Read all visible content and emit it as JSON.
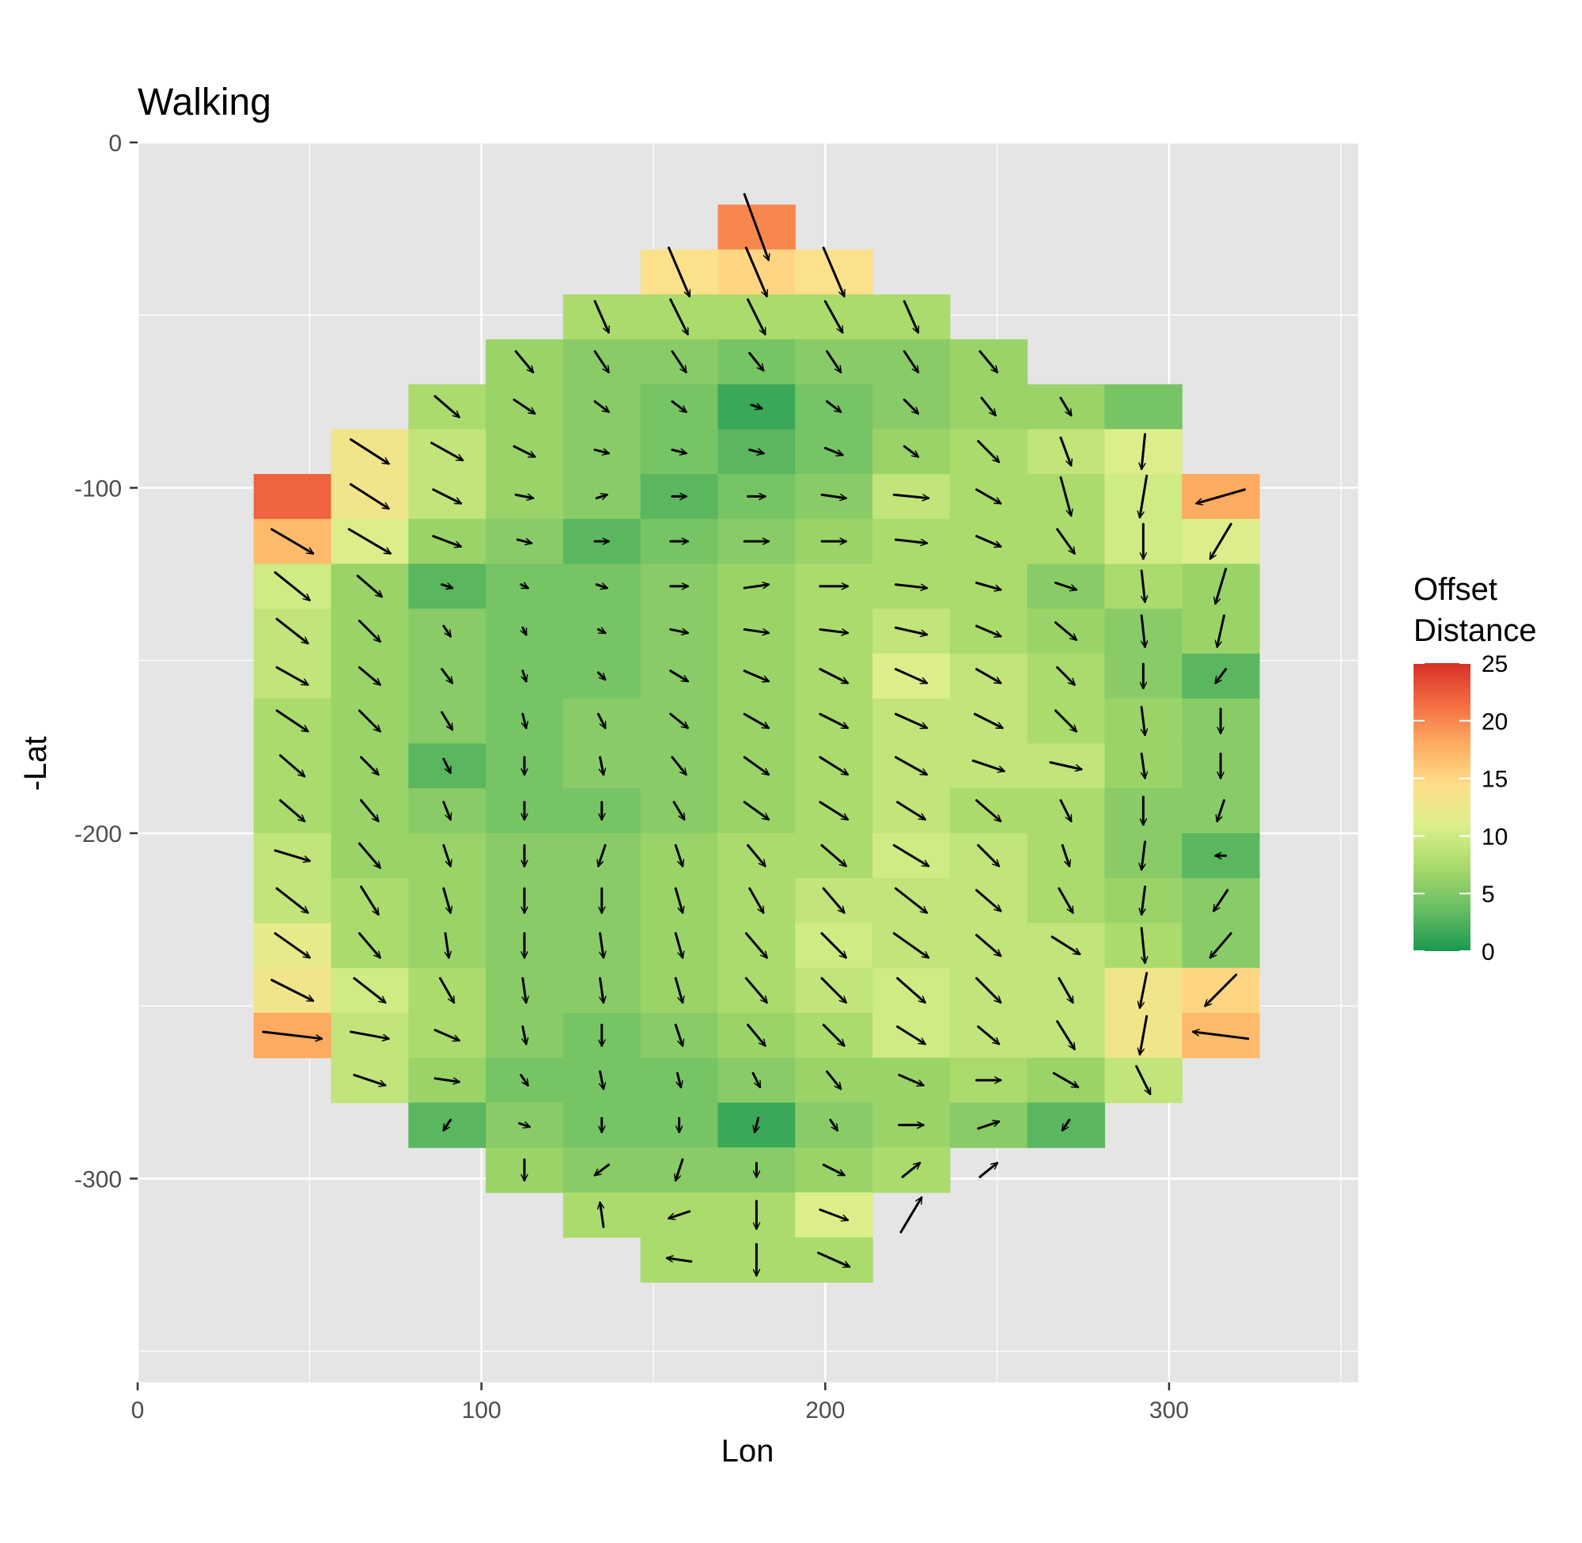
{
  "chart_data": {
    "type": "heatmap",
    "title": "Walking",
    "xlabel": "Lon",
    "ylabel": "-Lat",
    "xlim": [
      0,
      355
    ],
    "ylim": [
      -359,
      0
    ],
    "x_ticks": [
      {
        "value": 0,
        "label": "0"
      },
      {
        "value": 100,
        "label": "100"
      },
      {
        "value": 200,
        "label": "200"
      },
      {
        "value": 300,
        "label": "300"
      }
    ],
    "y_ticks": [
      {
        "value": 0,
        "label": "0"
      },
      {
        "value": -100,
        "label": "-100"
      },
      {
        "value": -200,
        "label": "-200"
      },
      {
        "value": -300,
        "label": "-300"
      }
    ],
    "grid": true,
    "legend": {
      "title": "Offset\nDistance",
      "position": "right",
      "range": [
        0,
        25
      ],
      "breaks": [
        {
          "value": 25,
          "label": "25"
        },
        {
          "value": 20,
          "label": "20"
        },
        {
          "value": 15,
          "label": "15"
        },
        {
          "value": 10,
          "label": "10"
        },
        {
          "value": 5,
          "label": "5"
        },
        {
          "value": 0,
          "label": "0"
        }
      ],
      "colors": [
        "#1a9850",
        "#66bd63",
        "#a6d96a",
        "#d9ef8b",
        "#fee08b",
        "#fdae61",
        "#f46d43",
        "#d73027"
      ]
    },
    "cell": {
      "width": 22.5,
      "height": 13
    },
    "columns": [
      45,
      67.5,
      90,
      112.5,
      135,
      157.5,
      180,
      202.5,
      225,
      247.5,
      270,
      292.5,
      315
    ],
    "rows": [
      -24.5,
      -37.5,
      -50.5,
      -63.5,
      -76.5,
      -89.5,
      -102.5,
      -115.5,
      -128.5,
      -141.5,
      -154.5,
      -167.5,
      -180.5,
      -193.5,
      -206.5,
      -219.5,
      -232.5,
      -245.5,
      -258.5,
      -271.5,
      -284.5,
      -297.5,
      -310.5,
      -323.5
    ],
    "grid_rows": [
      "......Q......",
      ".....MNM.....",
      "....GGGGG....",
      "...FEEDEEF...",
      "..GFEDBDEFFD.",
      ".LHFEDCDFGHJ.",
      "SLHFECDEHGGIP",
      "OJFECDEFGGGIJ",
      "IFCDDEFGGGEGF",
      "HFEDDEFGHGFEF",
      "HFEDDEFGJHGEC",
      "GFEDEEFGHHGFE",
      "GFCDEEFGHHHFE",
      "GFEDDEFGHGGEE",
      "HFFEEFGGIHGEC",
      "HGFEEFGHHHGFE",
      "KGFEEFGIHHHGE",
      "LIGEEFGHIHHLN",
      "PHGEDEFGIHHLO",
      ".HFDDDEFFGFH.",
      "..CEDDBEFEC..",
      "...FEEEFG....",
      "....GGGJ.....",
      ".....GGG....."
    ],
    "value_scale": {
      "A": 0,
      "B": 1.5,
      "C": 3,
      "D": 4.5,
      "E": 5.5,
      "F": 6.5,
      "G": 7.5,
      "H": 9,
      "I": 10,
      "J": 11,
      "K": 12,
      "L": 13,
      "M": 14,
      "N": 15,
      "O": 17,
      "P": 18,
      "Q": 20,
      "R": 21,
      "S": 22
    },
    "offsets": [
      [
        "",
        "",
        "",
        "",
        "",
        "",
        [
          7,
          -19
        ],
        "",
        "",
        "",
        "",
        "",
        ""
      ],
      [
        "",
        "",
        "",
        "",
        "",
        [
          6,
          -14
        ],
        [
          6,
          -14
        ],
        [
          6,
          -14
        ],
        "",
        "",
        "",
        "",
        ""
      ],
      [
        "",
        "",
        "",
        "",
        [
          4,
          -9
        ],
        [
          5,
          -10
        ],
        [
          5,
          -10
        ],
        [
          5,
          -9
        ],
        [
          4,
          -9
        ],
        "",
        "",
        "",
        ""
      ],
      [
        "",
        "",
        "",
        [
          5,
          -6
        ],
        [
          4,
          -6
        ],
        [
          4,
          -6
        ],
        [
          4,
          -5
        ],
        [
          4,
          -6
        ],
        [
          4,
          -6
        ],
        [
          5,
          -6
        ],
        "",
        "",
        ""
      ],
      [
        "",
        "",
        [
          7,
          -6
        ],
        [
          6,
          -4
        ],
        [
          4,
          -3
        ],
        [
          4,
          -3
        ],
        [
          3,
          -1
        ],
        [
          4,
          -3
        ],
        [
          4,
          -4
        ],
        [
          4,
          -5
        ],
        [
          3,
          -5
        ],
        "",
        ""
      ],
      [
        "",
        [
          11,
          -7
        ],
        [
          9,
          -5
        ],
        [
          6,
          -3
        ],
        [
          4,
          -1
        ],
        [
          4,
          -1
        ],
        [
          4,
          -1
        ],
        [
          5,
          -2
        ],
        [
          4,
          -3
        ],
        [
          6,
          -6
        ],
        [
          3,
          -8
        ],
        [
          -1,
          -10
        ],
        ""
      ],
      [
        "",
        [
          11,
          -7
        ],
        [
          8,
          -4
        ],
        [
          5,
          -1
        ],
        [
          3,
          1
        ],
        [
          4,
          0
        ],
        [
          5,
          0
        ],
        [
          7,
          -1
        ],
        [
          10,
          -1
        ],
        [
          7,
          -4
        ],
        [
          3,
          -11
        ],
        [
          -2,
          -12
        ],
        [
          -14,
          -4
        ]
      ],
      [
        [
          12,
          -7
        ],
        [
          12,
          -7
        ],
        [
          8,
          -3
        ],
        [
          4,
          -1
        ],
        [
          4,
          0
        ],
        [
          5,
          0
        ],
        [
          7,
          0
        ],
        [
          7,
          0
        ],
        [
          9,
          -1
        ],
        [
          7,
          -3
        ],
        [
          5,
          -7
        ],
        [
          0,
          -10
        ],
        [
          -6,
          -10
        ]
      ],
      [
        [
          10,
          -8
        ],
        [
          7,
          -6
        ],
        [
          3,
          -1
        ],
        [
          2,
          -1
        ],
        [
          3,
          -1
        ],
        [
          5,
          0
        ],
        [
          7,
          1
        ],
        [
          8,
          0
        ],
        [
          9,
          -1
        ],
        [
          7,
          -2
        ],
        [
          6,
          -2
        ],
        [
          1,
          -9
        ],
        [
          -3,
          -10
        ]
      ],
      [
        [
          9,
          -7
        ],
        [
          6,
          -6
        ],
        [
          2,
          -3
        ],
        [
          1,
          -2
        ],
        [
          2,
          -1
        ],
        [
          5,
          -1
        ],
        [
          7,
          -1
        ],
        [
          8,
          -1
        ],
        [
          9,
          -2
        ],
        [
          7,
          -3
        ],
        [
          6,
          -5
        ],
        [
          1,
          -9
        ],
        [
          -2,
          -9
        ]
      ],
      [
        [
          9,
          -5
        ],
        [
          6,
          -5
        ],
        [
          3,
          -4
        ],
        [
          1,
          -3
        ],
        [
          2,
          -2
        ],
        [
          5,
          -3
        ],
        [
          7,
          -3
        ],
        [
          8,
          -4
        ],
        [
          9,
          -4
        ],
        [
          7,
          -4
        ],
        [
          5,
          -5
        ],
        [
          0,
          -7
        ],
        [
          -3,
          -4
        ]
      ],
      [
        [
          9,
          -6
        ],
        [
          6,
          -6
        ],
        [
          3,
          -5
        ],
        [
          1,
          -4
        ],
        [
          2,
          -4
        ],
        [
          5,
          -4
        ],
        [
          7,
          -4
        ],
        [
          8,
          -4
        ],
        [
          9,
          -4
        ],
        [
          8,
          -4
        ],
        [
          6,
          -6
        ],
        [
          1,
          -8
        ],
        [
          0,
          -7
        ]
      ],
      [
        [
          7,
          -6
        ],
        [
          5,
          -5
        ],
        [
          2,
          -4
        ],
        [
          0,
          -5
        ],
        [
          1,
          -5
        ],
        [
          4,
          -5
        ],
        [
          7,
          -5
        ],
        [
          8,
          -5
        ],
        [
          9,
          -5
        ],
        [
          9,
          -3
        ],
        [
          9,
          -2
        ],
        [
          1,
          -7
        ],
        [
          0,
          -7
        ]
      ],
      [
        [
          7,
          -6
        ],
        [
          5,
          -6
        ],
        [
          2,
          -5
        ],
        [
          0,
          -5
        ],
        [
          0,
          -5
        ],
        [
          3,
          -5
        ],
        [
          7,
          -5
        ],
        [
          8,
          -5
        ],
        [
          8,
          -5
        ],
        [
          7,
          -6
        ],
        [
          3,
          -6
        ],
        [
          0,
          -8
        ],
        [
          -2,
          -6
        ]
      ],
      [
        [
          10,
          -3
        ],
        [
          6,
          -7
        ],
        [
          2,
          -6
        ],
        [
          0,
          -6
        ],
        [
          -2,
          -6
        ],
        [
          2,
          -6
        ],
        [
          5,
          -6
        ],
        [
          7,
          -6
        ],
        [
          10,
          -6
        ],
        [
          6,
          -6
        ],
        [
          2,
          -6
        ],
        [
          -1,
          -8
        ],
        [
          -3,
          0
        ]
      ],
      [
        [
          9,
          -7
        ],
        [
          5,
          -8
        ],
        [
          2,
          -7
        ],
        [
          0,
          -7
        ],
        [
          0,
          -7
        ],
        [
          2,
          -7
        ],
        [
          4,
          -7
        ],
        [
          6,
          -7
        ],
        [
          9,
          -7
        ],
        [
          7,
          -6
        ],
        [
          4,
          -7
        ],
        [
          -1,
          -8
        ],
        [
          -4,
          -6
        ]
      ],
      [
        [
          10,
          -7
        ],
        [
          6,
          -7
        ],
        [
          1,
          -7
        ],
        [
          0,
          -7
        ],
        [
          1,
          -7
        ],
        [
          2,
          -7
        ],
        [
          6,
          -7
        ],
        [
          7,
          -7
        ],
        [
          10,
          -7
        ],
        [
          7,
          -6
        ],
        [
          8,
          -5
        ],
        [
          1,
          -10
        ],
        [
          -6,
          -7
        ]
      ],
      [
        [
          12,
          -6
        ],
        [
          9,
          -7
        ],
        [
          4,
          -7
        ],
        [
          1,
          -7
        ],
        [
          1,
          -7
        ],
        [
          2,
          -7
        ],
        [
          6,
          -7
        ],
        [
          7,
          -7
        ],
        [
          8,
          -7
        ],
        [
          7,
          -7
        ],
        [
          4,
          -7
        ],
        [
          -2,
          -10
        ],
        [
          -9,
          -9
        ]
      ],
      [
        [
          17,
          -2
        ],
        [
          11,
          -2
        ],
        [
          7,
          -3
        ],
        [
          1,
          -5
        ],
        [
          0,
          -6
        ],
        [
          2,
          -6
        ],
        [
          5,
          -6
        ],
        [
          6,
          -6
        ],
        [
          8,
          -5
        ],
        [
          6,
          -5
        ],
        [
          5,
          -8
        ],
        [
          -2,
          -11
        ],
        [
          -16,
          2
        ]
      ],
      [
        "",
        [
          9,
          -3
        ],
        [
          7,
          -1
        ],
        [
          2,
          -3
        ],
        [
          1,
          -5
        ],
        [
          1,
          -4
        ],
        [
          2,
          -4
        ],
        [
          4,
          -5
        ],
        [
          7,
          -3
        ],
        [
          7,
          0
        ],
        [
          7,
          -4
        ],
        [
          4,
          -8
        ],
        ""
      ],
      [
        "",
        "",
        [
          -2,
          -3
        ],
        [
          3,
          -1
        ],
        [
          0,
          -4
        ],
        [
          0,
          -4
        ],
        [
          -1,
          -4
        ],
        [
          2,
          -3
        ],
        [
          7,
          0
        ],
        [
          6,
          2
        ],
        [
          -2,
          -3
        ],
        "",
        ""
      ],
      [
        "",
        "",
        "",
        [
          0,
          -6
        ],
        [
          -4,
          -3
        ],
        [
          -2,
          -6
        ],
        [
          0,
          -4
        ],
        [
          6,
          -3
        ],
        [
          5,
          4
        ],
        [
          5,
          4
        ],
        "",
        "",
        ""
      ],
      [
        "",
        "",
        "",
        "",
        [
          -1,
          7
        ],
        [
          -6,
          -2
        ],
        [
          0,
          -8
        ],
        [
          8,
          -3
        ],
        [
          6,
          10
        ],
        "",
        "",
        "",
        ""
      ],
      [
        "",
        "",
        "",
        "",
        "",
        [
          -7,
          1
        ],
        [
          0,
          -9
        ],
        [
          9,
          -4
        ],
        "",
        "",
        "",
        "",
        ""
      ]
    ]
  }
}
